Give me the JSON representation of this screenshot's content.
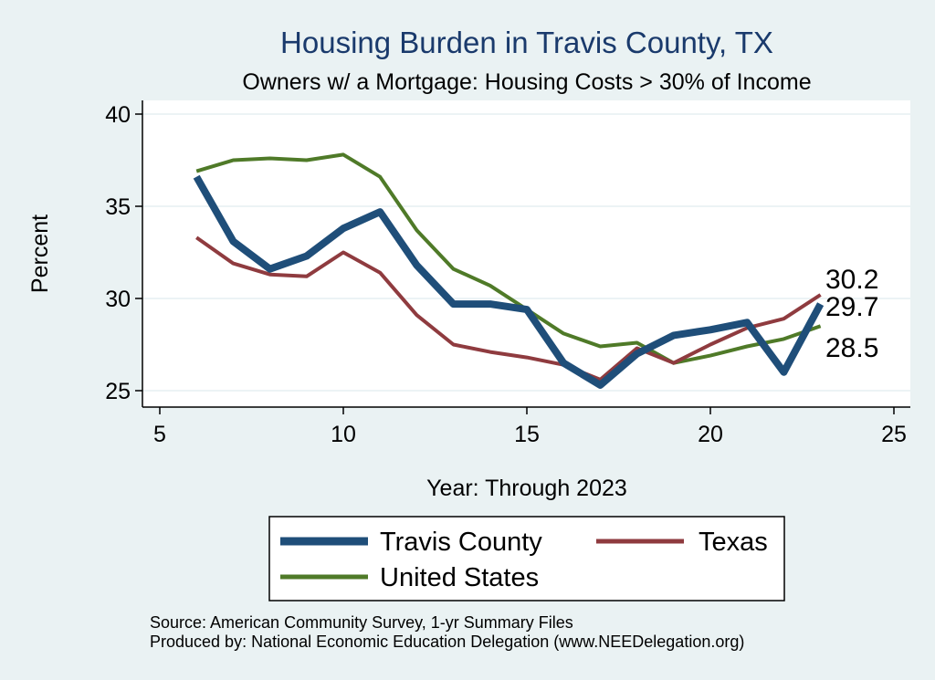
{
  "chart_data": {
    "type": "line",
    "title": "Housing Burden in Travis County, TX",
    "subtitle": "Owners w/ a Mortgage: Housing Costs > 30% of Income",
    "xlabel": "Year: Through 2023",
    "ylabel": "Percent",
    "xlim": [
      5,
      25
    ],
    "ylim": [
      24.5,
      40.5
    ],
    "xticks": [
      5,
      10,
      15,
      20,
      25
    ],
    "yticks": [
      25,
      30,
      35,
      40
    ],
    "grid": true,
    "legend_position": "bottom",
    "series": [
      {
        "name": "Travis County",
        "color": "#1f4e79",
        "x": [
          6,
          7,
          8,
          9,
          10,
          11,
          12,
          13,
          14,
          15,
          16,
          17,
          18,
          19,
          20,
          21,
          22,
          23
        ],
        "values": [
          36.6,
          33.1,
          31.6,
          32.3,
          33.8,
          34.7,
          31.8,
          29.7,
          29.7,
          29.4,
          26.5,
          25.3,
          27.0,
          28.0,
          28.3,
          28.7,
          26.0,
          29.7
        ],
        "end_label": "29.7"
      },
      {
        "name": "Texas",
        "color": "#8f3b3f",
        "x": [
          6,
          7,
          8,
          9,
          10,
          11,
          12,
          13,
          14,
          15,
          16,
          17,
          18,
          19,
          20,
          21,
          22,
          23
        ],
        "values": [
          33.3,
          31.9,
          31.3,
          31.2,
          32.5,
          31.4,
          29.1,
          27.5,
          27.1,
          26.8,
          26.4,
          25.6,
          27.3,
          26.5,
          27.5,
          28.4,
          28.9,
          30.2
        ],
        "end_label": "30.2"
      },
      {
        "name": "United States",
        "color": "#4f7a28",
        "x": [
          6,
          7,
          8,
          9,
          10,
          11,
          12,
          13,
          14,
          15,
          16,
          17,
          18,
          19,
          20,
          21,
          22,
          23
        ],
        "values": [
          36.9,
          37.5,
          37.6,
          37.5,
          37.8,
          36.6,
          33.7,
          31.6,
          30.7,
          29.4,
          28.1,
          27.4,
          27.6,
          26.5,
          26.9,
          27.4,
          27.8,
          28.5
        ],
        "end_label": "28.5"
      }
    ],
    "legend": [
      "Travis County",
      "Texas",
      "United States"
    ],
    "footnotes": [
      "Source: American Community Survey, 1-yr Summary Files",
      "Produced by: National Economic Education Delegation (www.NEEDelegation.org)"
    ]
  },
  "colors": {
    "background": "#eaf2f3",
    "plot_background": "#ffffff",
    "grid": "#e6eff2",
    "title": "#1a3a6c"
  }
}
